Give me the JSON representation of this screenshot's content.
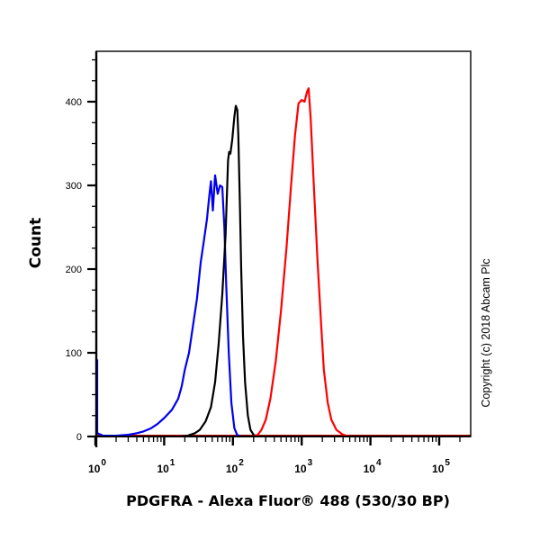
{
  "chart_data": {
    "type": "line",
    "title": "",
    "xlabel": "PDGFRA - Alexa Fluor® 488 (530/30 BP)",
    "ylabel": "Count",
    "x_scale": "log",
    "xlim": [
      0.8,
      250000
    ],
    "ylim": [
      0,
      450
    ],
    "x_ticks": [
      "10^0",
      "10^1",
      "10^2",
      "10^3",
      "10^4",
      "10^5"
    ],
    "x_tick_values": [
      1,
      10,
      100,
      1000,
      10000,
      100000
    ],
    "y_ticks": [
      0,
      100,
      200,
      300,
      400
    ],
    "grid": false,
    "legend": null,
    "annotation": "Copyright (c) 2018 Abcam Plc",
    "series": [
      {
        "name": "blue",
        "color": "#0000ee",
        "points": [
          [
            0.85,
            92
          ],
          [
            0.9,
            60
          ],
          [
            0.95,
            20
          ],
          [
            1.05,
            4
          ],
          [
            1.3,
            1
          ],
          [
            2.0,
            1
          ],
          [
            3.0,
            2
          ],
          [
            4.0,
            4
          ],
          [
            5.0,
            6
          ],
          [
            6.5,
            10
          ],
          [
            8.0,
            15
          ],
          [
            10,
            22
          ],
          [
            13,
            32
          ],
          [
            16,
            45
          ],
          [
            18,
            60
          ],
          [
            20,
            80
          ],
          [
            23,
            100
          ],
          [
            26,
            130
          ],
          [
            30,
            165
          ],
          [
            34,
            208
          ],
          [
            38,
            235
          ],
          [
            42,
            260
          ],
          [
            45,
            285
          ],
          [
            48,
            305
          ],
          [
            51,
            270
          ],
          [
            55,
            312
          ],
          [
            60,
            290
          ],
          [
            65,
            300
          ],
          [
            70,
            298
          ],
          [
            75,
            250
          ],
          [
            80,
            180
          ],
          [
            87,
            100
          ],
          [
            95,
            40
          ],
          [
            105,
            10
          ],
          [
            115,
            2
          ],
          [
            130,
            0
          ]
        ]
      },
      {
        "name": "black",
        "color": "#000000",
        "points": [
          [
            18,
            0
          ],
          [
            22,
            1
          ],
          [
            28,
            4
          ],
          [
            33,
            8
          ],
          [
            40,
            18
          ],
          [
            48,
            35
          ],
          [
            55,
            65
          ],
          [
            62,
            110
          ],
          [
            70,
            170
          ],
          [
            78,
            240
          ],
          [
            85,
            330
          ],
          [
            88,
            340
          ],
          [
            92,
            338
          ],
          [
            98,
            355
          ],
          [
            105,
            382
          ],
          [
            110,
            395
          ],
          [
            116,
            390
          ],
          [
            120,
            360
          ],
          [
            126,
            280
          ],
          [
            132,
            200
          ],
          [
            140,
            120
          ],
          [
            150,
            65
          ],
          [
            165,
            25
          ],
          [
            180,
            8
          ],
          [
            200,
            2
          ],
          [
            230,
            0
          ]
        ]
      },
      {
        "name": "red",
        "color": "#ff0000",
        "points": [
          [
            200,
            0
          ],
          [
            230,
            2
          ],
          [
            260,
            8
          ],
          [
            300,
            20
          ],
          [
            350,
            45
          ],
          [
            420,
            90
          ],
          [
            500,
            150
          ],
          [
            600,
            225
          ],
          [
            700,
            300
          ],
          [
            800,
            360
          ],
          [
            900,
            398
          ],
          [
            1000,
            402
          ],
          [
            1100,
            400
          ],
          [
            1200,
            412
          ],
          [
            1260,
            416
          ],
          [
            1350,
            380
          ],
          [
            1500,
            300
          ],
          [
            1700,
            210
          ],
          [
            1900,
            140
          ],
          [
            2100,
            80
          ],
          [
            2400,
            40
          ],
          [
            2700,
            20
          ],
          [
            3200,
            8
          ],
          [
            4000,
            2
          ],
          [
            5000,
            0
          ]
        ]
      }
    ]
  },
  "labels": {
    "ylabel": "Count",
    "xlabel": "PDGFRA - Alexa Fluor® 488 (530/30 BP)",
    "copyright": "Copyright (c) 2018 Abcam Plc",
    "y_tick_labels": [
      "0",
      "100",
      "200",
      "300",
      "400"
    ],
    "x_decade_exponents": [
      "0",
      "1",
      "2",
      "3",
      "4",
      "5"
    ]
  }
}
